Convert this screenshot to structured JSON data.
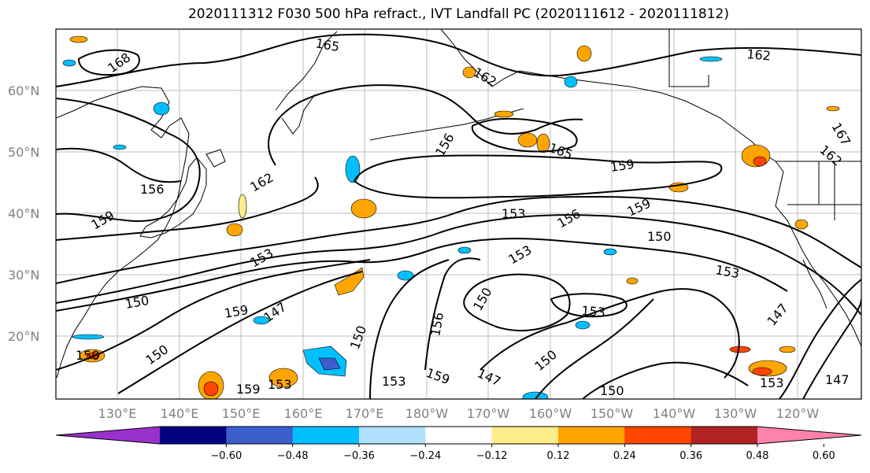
{
  "title": "2020111312 F030 500 hPa refract., IVT Landfall PC (2020111612 - 2020111812)",
  "lat_labels": [
    "60°N",
    "50°N",
    "40°N",
    "30°N",
    "20°N"
  ],
  "lon_labels": [
    "130°E",
    "140°E",
    "150°E",
    "160°E",
    "170°E",
    "180°W",
    "170°W",
    "160°W",
    "150°W",
    "140°W",
    "130°W",
    "120°W"
  ],
  "contour_labels": [
    "165",
    "168",
    "162",
    "162",
    "165",
    "159",
    "162",
    "156",
    "159",
    "156",
    "153",
    "159",
    "156",
    "153",
    "150",
    "153",
    "150",
    "150",
    "159",
    "147",
    "153",
    "150",
    "153",
    "147",
    "150",
    "156",
    "159",
    "153",
    "153",
    "147",
    "150",
    "162",
    "167",
    "147",
    "150",
    "153",
    "150",
    "159"
  ],
  "colorbar": {
    "ticks": [
      "−0.60",
      "−0.48",
      "−0.36",
      "−0.24",
      "−0.12",
      "0.12",
      "0.24",
      "0.36",
      "0.48",
      "0.60"
    ],
    "colors": [
      "#9932cc",
      "#000080",
      "#3a5fcd",
      "#00bfff",
      "#b0e2ff",
      "#ffffff",
      "#ffec8b",
      "#ffa500",
      "#ff4500",
      "#b22222",
      "#ff82ab"
    ]
  }
}
